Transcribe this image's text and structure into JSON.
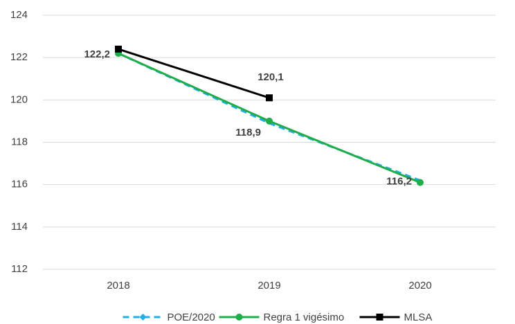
{
  "chart_data": {
    "type": "line",
    "categories": [
      "2018",
      "2019",
      "2020"
    ],
    "series": [
      {
        "name": "POE/2020",
        "color": "#22aee4",
        "dash": true,
        "marker": "diamond",
        "values": [
          122.2,
          118.9,
          116.2
        ],
        "value_labels": [
          "122,2",
          "118,9",
          "116,2"
        ]
      },
      {
        "name": "Regra 1 vigésimo",
        "color": "#1fac4b",
        "dash": false,
        "marker": "circle",
        "values": [
          122.2,
          119.0,
          116.1
        ]
      },
      {
        "name": "MLSA",
        "color": "#000000",
        "dash": false,
        "marker": "square",
        "values": [
          122.4,
          120.1,
          null
        ],
        "value_labels": [
          null,
          "120,1",
          null
        ]
      }
    ],
    "ylim": [
      112,
      124
    ],
    "yticks": [
      112,
      114,
      116,
      118,
      120,
      122,
      124
    ],
    "grid": true,
    "legend": "bottom"
  }
}
